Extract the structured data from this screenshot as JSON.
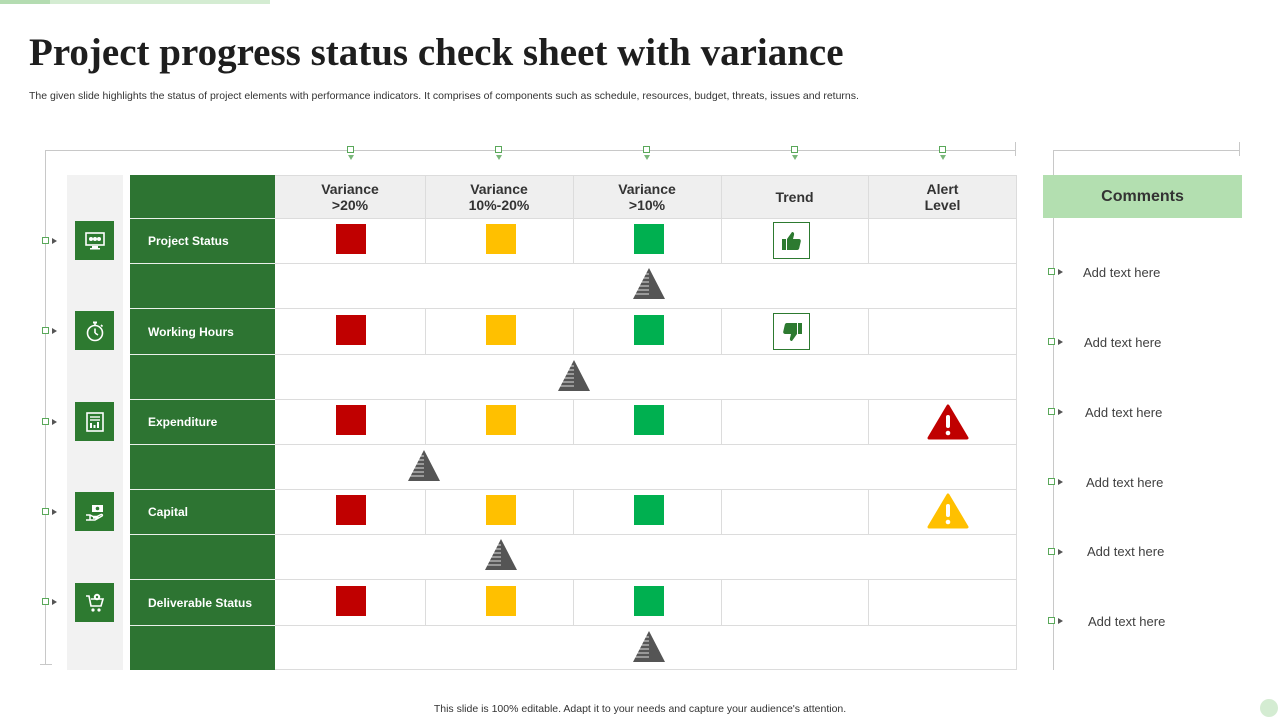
{
  "title": "Project progress status check sheet with variance",
  "subtitle": "The given slide highlights the status of project elements  with performance indicators. It comprises of components such as schedule, resources, budget, threats, issues and returns.",
  "columns": [
    {
      "line1": "Variance",
      "line2": ">20%"
    },
    {
      "line1": "Variance",
      "line2": "10%-20%"
    },
    {
      "line1": "Variance",
      "line2": ">10%"
    },
    {
      "line1": "Trend",
      "line2": ""
    },
    {
      "line1": "Alert",
      "line2": "Level"
    }
  ],
  "rows": [
    {
      "label": "Project Status",
      "icon": "monitor-dashboard-icon",
      "trend": "thumbs-up-icon",
      "alert": "none",
      "marker_column": 3
    },
    {
      "label": "Working Hours",
      "icon": "stopwatch-icon",
      "trend": "thumbs-down-icon",
      "alert": "none",
      "marker_column": 2.5
    },
    {
      "label": "Expenditure",
      "icon": "document-chart-icon",
      "trend": "none",
      "alert": "red-warning-icon",
      "marker_column": 1.5
    },
    {
      "label": "Capital",
      "icon": "hand-money-icon",
      "trend": "none",
      "alert": "yellow-warning-icon",
      "marker_column": 2
    },
    {
      "label": "Deliverable Status",
      "icon": "cart-gear-icon",
      "trend": "none",
      "alert": "none",
      "marker_column": 3
    }
  ],
  "colors": {
    "red": "#c00000",
    "yellow": "#ffc000",
    "green": "#00b050",
    "dark_green": "#2d7432",
    "light_green": "#b3dfb0"
  },
  "comments": {
    "header": "Comments",
    "items": [
      "Add text here",
      "Add text here",
      "Add text here",
      "Add text here",
      "Add text here",
      "Add text here"
    ]
  },
  "footer": "This slide is 100% editable.  Adapt it to your needs and capture your audience's attention."
}
